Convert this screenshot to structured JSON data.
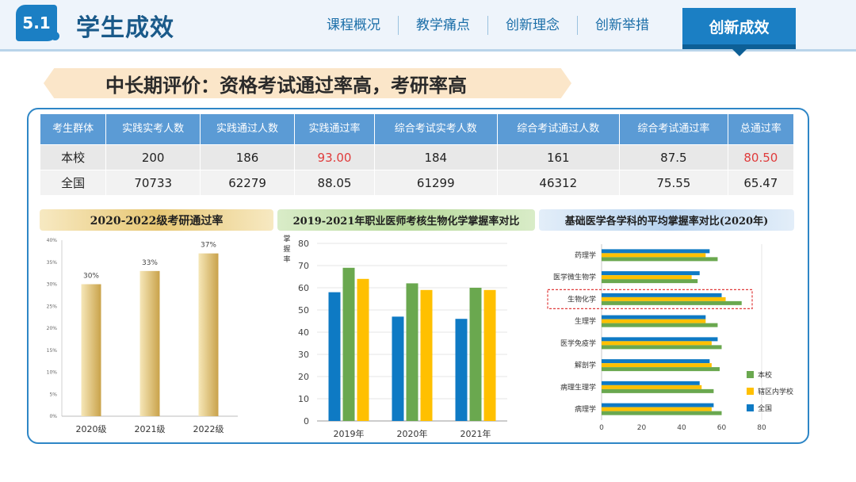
{
  "header": {
    "section_number": "5.1",
    "title": "学生成效",
    "nav": [
      "课程概况",
      "教学痛点",
      "创新理念",
      "创新举措"
    ],
    "active_tab": "创新成效"
  },
  "banner": {
    "text": "中长期评价：资格考试通过率高，考研率高"
  },
  "table": {
    "headers": [
      "考生群体",
      "实践实考人数",
      "实践通过人数",
      "实践通过率",
      "综合考试实考人数",
      "综合考试通过人数",
      "综合考试通过率",
      "总通过率"
    ],
    "rows": [
      [
        "本校",
        "200",
        "186",
        "93.00",
        "184",
        "161",
        "87.5",
        "80.50"
      ],
      [
        "全国",
        "70733",
        "62279",
        "88.05",
        "61299",
        "46312",
        "75.55",
        "65.47"
      ]
    ]
  },
  "chart_data": [
    {
      "type": "bar",
      "title": "2020-2022级考研通过率",
      "categories": [
        "2020级",
        "2021级",
        "2022级"
      ],
      "values": [
        30,
        33,
        37
      ],
      "data_labels": [
        "30%",
        "33%",
        "37%"
      ],
      "ytick_labels": [
        "0%",
        "5%",
        "10%",
        "15%",
        "20%",
        "25%",
        "30%",
        "35%",
        "40%"
      ],
      "ylim": [
        0,
        40
      ],
      "colors": [
        "#f6e7b8",
        "#c9a24a"
      ]
    },
    {
      "type": "bar",
      "title": "2019-2021年职业医师考核生物化学掌握率对比",
      "ylabel": "掌握率",
      "categories": [
        "2019年",
        "2020年",
        "2021年"
      ],
      "series": [
        {
          "values": [
            58,
            47,
            46
          ],
          "color": "#0e7ac4"
        },
        {
          "values": [
            69,
            62,
            60
          ],
          "color": "#6aa84f"
        },
        {
          "values": [
            64,
            59,
            59
          ],
          "color": "#ffc000"
        }
      ],
      "ylim": [
        0,
        80
      ],
      "yticks": [
        0,
        10,
        20,
        30,
        40,
        50,
        60,
        70,
        80
      ]
    },
    {
      "type": "bar",
      "orientation": "horizontal",
      "title": "基础医学各学科的平均掌握率对比(2020年)",
      "categories": [
        "药理学",
        "医学微生物学",
        "生物化学",
        "生理学",
        "医学免疫学",
        "解剖学",
        "病理生理学",
        "病理学"
      ],
      "highlighted": "生物化学",
      "series": [
        {
          "name": "本校",
          "values": [
            58,
            48,
            70,
            58,
            60,
            59,
            56,
            60
          ],
          "color": "#6aa84f"
        },
        {
          "name": "辖区内学校",
          "values": [
            52,
            45,
            62,
            52,
            55,
            55,
            50,
            55
          ],
          "color": "#ffc000"
        },
        {
          "name": "全国",
          "values": [
            54,
            49,
            60,
            52,
            58,
            54,
            49,
            56
          ],
          "color": "#0e7ac4"
        }
      ],
      "xlim": [
        0,
        80
      ],
      "xticks": [
        0,
        20,
        40,
        60,
        80
      ],
      "legend_position": "right"
    }
  ]
}
